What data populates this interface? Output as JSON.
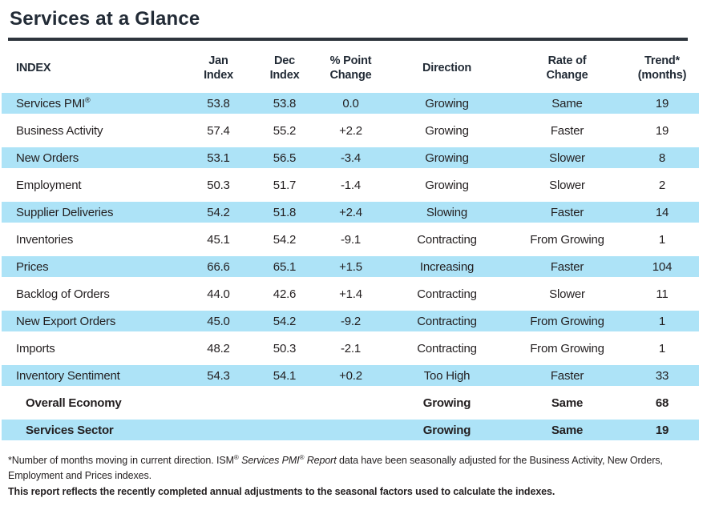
{
  "page": {
    "title": "Services at a Glance"
  },
  "colors": {
    "row_highlight_blue": "#ADE3F7",
    "ink": "#231F20",
    "heading_ink": "#222B36",
    "divider": "#2E353D"
  },
  "table": {
    "columns": [
      {
        "key": "index",
        "label": "INDEX"
      },
      {
        "key": "jan",
        "label": "Jan\nIndex"
      },
      {
        "key": "dec",
        "label": "Dec\nIndex"
      },
      {
        "key": "change",
        "label": "% Point\nChange"
      },
      {
        "key": "direction",
        "label": "Direction"
      },
      {
        "key": "rate",
        "label": "Rate of\nChange"
      },
      {
        "key": "trend",
        "label": "Trend*\n(months)"
      }
    ],
    "rows": [
      {
        "label": "Services PMI",
        "sup": "®",
        "jan": "53.8",
        "dec": "53.8",
        "change": "0.0",
        "direction": "Growing",
        "rate": "Same",
        "trend": "19"
      },
      {
        "label": "Business Activity",
        "jan": "57.4",
        "dec": "55.2",
        "change": "+2.2",
        "direction": "Growing",
        "rate": "Faster",
        "trend": "19"
      },
      {
        "label": "New Orders",
        "jan": "53.1",
        "dec": "56.5",
        "change": "-3.4",
        "direction": "Growing",
        "rate": "Slower",
        "trend": "8"
      },
      {
        "label": "Employment",
        "jan": "50.3",
        "dec": "51.7",
        "change": "-1.4",
        "direction": "Growing",
        "rate": "Slower",
        "trend": "2"
      },
      {
        "label": "Supplier Deliveries",
        "jan": "54.2",
        "dec": "51.8",
        "change": "+2.4",
        "direction": "Slowing",
        "rate": "Faster",
        "trend": "14"
      },
      {
        "label": "Inventories",
        "jan": "45.1",
        "dec": "54.2",
        "change": "-9.1",
        "direction": "Contracting",
        "rate": "From Growing",
        "trend": "1"
      },
      {
        "label": "Prices",
        "jan": "66.6",
        "dec": "65.1",
        "change": "+1.5",
        "direction": "Increasing",
        "rate": "Faster",
        "trend": "104"
      },
      {
        "label": "Backlog of Orders",
        "jan": "44.0",
        "dec": "42.6",
        "change": "+1.4",
        "direction": "Contracting",
        "rate": "Slower",
        "trend": "11"
      },
      {
        "label": "New Export Orders",
        "jan": "45.0",
        "dec": "54.2",
        "change": "-9.2",
        "direction": "Contracting",
        "rate": "From Growing",
        "trend": "1"
      },
      {
        "label": "Imports",
        "jan": "48.2",
        "dec": "50.3",
        "change": "-2.1",
        "direction": "Contracting",
        "rate": "From Growing",
        "trend": "1"
      },
      {
        "label": "Inventory Sentiment",
        "jan": "54.3",
        "dec": "54.1",
        "change": "+0.2",
        "direction": "Too High",
        "rate": "Faster",
        "trend": "33"
      },
      {
        "label": "Overall Economy",
        "bold": true,
        "jan": "",
        "dec": "",
        "change": "",
        "direction": "Growing",
        "rate": "Same",
        "trend": "68"
      },
      {
        "label": "Services Sector",
        "bold": true,
        "jan": "",
        "dec": "",
        "change": "",
        "direction": "Growing",
        "rate": "Same",
        "trend": "19"
      }
    ]
  },
  "footnotes": {
    "seg1": "*Number of months moving in current direction. ISM",
    "sup1": "®",
    "seg2_italic": " Services PMI",
    "sup2": "®",
    "seg3_italic": " Report",
    "seg4": " data have been seasonally adjusted for the Business Activity, New Orders, Employment and Prices indexes.",
    "bold_line": "This report reflects the recently completed annual adjustments to the seasonal factors used to calculate the indexes."
  }
}
